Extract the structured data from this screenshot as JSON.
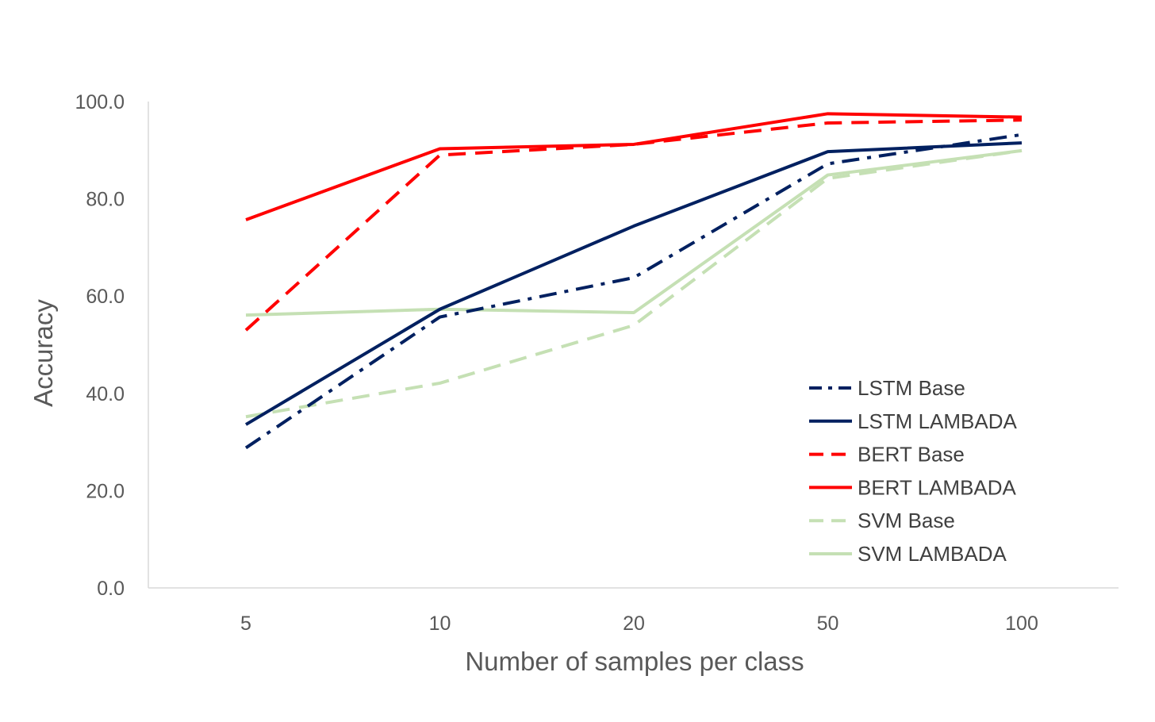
{
  "chart_data": {
    "type": "line",
    "title": "",
    "xlabel": "Number of samples per class",
    "ylabel": "Accuracy",
    "categories": [
      "5",
      "10",
      "20",
      "50",
      "100"
    ],
    "ylim": [
      0,
      100
    ],
    "yticks": [
      0,
      20,
      40,
      60,
      80,
      100
    ],
    "ytick_labels": [
      "0.0",
      "20.0",
      "40.0",
      "60.0",
      "80.0",
      "100.0"
    ],
    "grid": false,
    "legend_position": "bottom-right",
    "series": [
      {
        "name": "LSTM Base",
        "color": "#002060",
        "dash": "dash-dot",
        "values": [
          28.8,
          55.7,
          63.8,
          87.2,
          93.2
        ]
      },
      {
        "name": "LSTM LAMBADA",
        "color": "#002060",
        "dash": "solid",
        "values": [
          33.6,
          57.3,
          74.4,
          89.7,
          91.5
        ]
      },
      {
        "name": "BERT Base",
        "color": "#ff0000",
        "dash": "dash",
        "values": [
          53.0,
          89.0,
          91.2,
          95.6,
          96.2
        ]
      },
      {
        "name": "BERT LAMBADA",
        "color": "#ff0000",
        "dash": "solid",
        "values": [
          75.7,
          90.3,
          91.2,
          97.5,
          96.8
        ]
      },
      {
        "name": "SVM Base",
        "color": "#c5e0b4",
        "dash": "dash",
        "values": [
          35.2,
          42.1,
          54.0,
          84.2,
          89.9
        ]
      },
      {
        "name": "SVM LAMBADA",
        "color": "#c5e0b4",
        "dash": "solid",
        "values": [
          56.1,
          57.3,
          56.6,
          84.9,
          89.9
        ]
      }
    ]
  }
}
